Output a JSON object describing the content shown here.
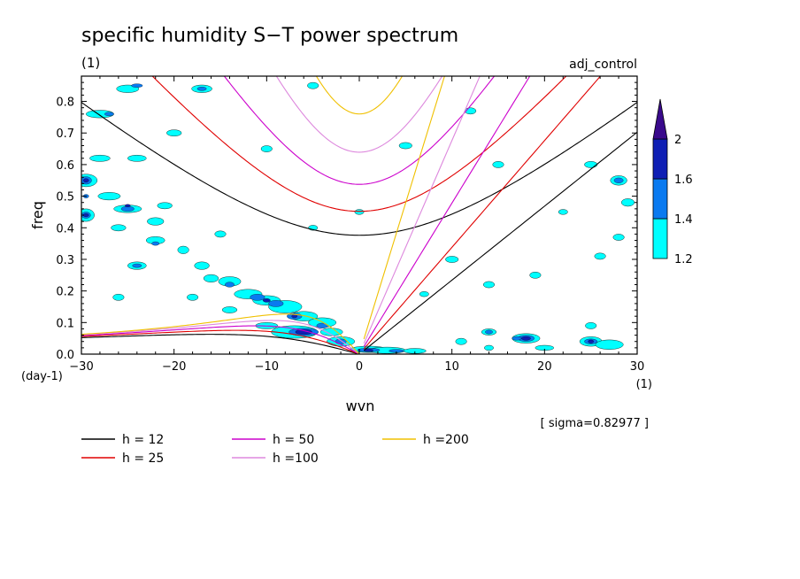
{
  "chart_data": {
    "type": "heatmap",
    "title": "specific humidity S−T power spectrum",
    "subtitle_left": "(1)",
    "subtitle_right": "adj_control",
    "xlabel": "wvn",
    "ylabel": "freq",
    "x_unit_label": "(1)",
    "y_unit_label": "(day-1)",
    "xlim": [
      -30,
      30
    ],
    "ylim": [
      0,
      0.88
    ],
    "x_ticks": [
      -30,
      -20,
      -10,
      0,
      10,
      20,
      30
    ],
    "x_tick_labels": [
      "−30",
      "−20",
      "−10",
      "0",
      "10",
      "20",
      "30"
    ],
    "y_ticks": [
      0,
      0.1,
      0.2,
      0.3,
      0.4,
      0.5,
      0.6,
      0.7,
      0.8
    ],
    "y_tick_labels": [
      "0.0",
      "0.1",
      "0.2",
      "0.3",
      "0.4",
      "0.5",
      "0.6",
      "0.7",
      "0.8"
    ],
    "note": "[ sigma=0.82977 ]",
    "colorbar": {
      "levels": [
        1.2,
        1.4,
        1.6,
        2
      ],
      "level_labels": [
        "1.2",
        "1.4",
        "1.6",
        "2"
      ],
      "colors": [
        "#00ffff",
        "#0a7af0",
        "#0f1fb4",
        "#3a0a8c"
      ]
    },
    "series": [
      {
        "name": "h = 12",
        "h": 12,
        "color": "#000000"
      },
      {
        "name": "h = 25",
        "h": 25,
        "color": "#e00000"
      },
      {
        "name": "h = 50",
        "h": 50,
        "color": "#cc00cc"
      },
      {
        "name": "h =100",
        "h": 100,
        "color": "#dd88dd"
      },
      {
        "name": "h =200",
        "h": 200,
        "color": "#f0c000"
      }
    ],
    "contours": [
      {
        "level": 1.2,
        "blobs": [
          [
            -29.5,
            0.55,
            1.2,
            0.02
          ],
          [
            -29.5,
            0.44,
            0.9,
            0.02
          ],
          [
            -27,
            0.5,
            1.2,
            0.012
          ],
          [
            -25,
            0.46,
            1.5,
            0.012
          ],
          [
            -22,
            0.42,
            0.9,
            0.012
          ],
          [
            -19,
            0.33,
            0.6,
            0.012
          ],
          [
            -28,
            0.76,
            1.5,
            0.012
          ],
          [
            -25,
            0.84,
            1.2,
            0.012
          ],
          [
            -17,
            0.84,
            1.1,
            0.012
          ],
          [
            -10,
            0.65,
            0.6,
            0.01
          ],
          [
            -5,
            0.85,
            0.6,
            0.01
          ],
          [
            5,
            0.66,
            0.7,
            0.01
          ],
          [
            12,
            0.77,
            0.6,
            0.01
          ],
          [
            15,
            0.6,
            0.6,
            0.01
          ],
          [
            25,
            0.6,
            0.7,
            0.01
          ],
          [
            28,
            0.55,
            0.9,
            0.015
          ],
          [
            29,
            0.48,
            0.7,
            0.012
          ],
          [
            -28,
            0.62,
            1.1,
            0.01
          ],
          [
            -24,
            0.62,
            1,
            0.01
          ],
          [
            -20,
            0.7,
            0.8,
            0.01
          ],
          [
            -17,
            0.28,
            0.8,
            0.012
          ],
          [
            -16,
            0.24,
            0.8,
            0.012
          ],
          [
            -14,
            0.23,
            1.2,
            0.015
          ],
          [
            -12,
            0.19,
            1.5,
            0.015
          ],
          [
            -10,
            0.17,
            1.5,
            0.015
          ],
          [
            -8,
            0.15,
            1.8,
            0.02
          ],
          [
            -6,
            0.12,
            1.5,
            0.015
          ],
          [
            -4,
            0.1,
            1.5,
            0.015
          ],
          [
            -3,
            0.07,
            1.2,
            0.012
          ],
          [
            -7,
            0.07,
            2.5,
            0.02
          ],
          [
            -10,
            0.09,
            1.2,
            0.01
          ],
          [
            -14,
            0.14,
            0.8,
            0.01
          ],
          [
            -2,
            0.04,
            1.5,
            0.015
          ],
          [
            1,
            0.015,
            2,
            0.01
          ],
          [
            3,
            0.012,
            2,
            0.01
          ],
          [
            6,
            0.01,
            1.2,
            0.008
          ],
          [
            11,
            0.04,
            0.6,
            0.01
          ],
          [
            14,
            0.02,
            0.5,
            0.008
          ],
          [
            14,
            0.07,
            0.8,
            0.01
          ],
          [
            18,
            0.05,
            1.5,
            0.015
          ],
          [
            25,
            0.04,
            1.2,
            0.015
          ],
          [
            25,
            0.09,
            0.6,
            0.01
          ],
          [
            27,
            0.03,
            1.5,
            0.015
          ],
          [
            20,
            0.02,
            1,
            0.008
          ],
          [
            10,
            0.3,
            0.7,
            0.01
          ],
          [
            14,
            0.22,
            0.6,
            0.01
          ],
          [
            19,
            0.25,
            0.6,
            0.01
          ],
          [
            26,
            0.31,
            0.6,
            0.01
          ],
          [
            28,
            0.37,
            0.6,
            0.01
          ],
          [
            -24,
            0.28,
            1,
            0.012
          ],
          [
            -22,
            0.36,
            1,
            0.012
          ],
          [
            -26,
            0.4,
            0.8,
            0.01
          ],
          [
            -21,
            0.47,
            0.8,
            0.01
          ],
          [
            -26,
            0.18,
            0.6,
            0.01
          ],
          [
            -18,
            0.18,
            0.6,
            0.01
          ],
          [
            -15,
            0.38,
            0.6,
            0.01
          ],
          [
            0,
            0.45,
            0.5,
            0.008
          ],
          [
            -5,
            0.4,
            0.5,
            0.008
          ],
          [
            7,
            0.19,
            0.5,
            0.008
          ],
          [
            22,
            0.45,
            0.5,
            0.008
          ]
        ]
      },
      {
        "level": 1.4,
        "blobs": [
          [
            -29.5,
            0.55,
            0.6,
            0.012
          ],
          [
            -29.5,
            0.44,
            0.5,
            0.01
          ],
          [
            -25,
            0.46,
            0.7,
            0.008
          ],
          [
            -27,
            0.76,
            0.5,
            0.006
          ],
          [
            -24,
            0.85,
            0.6,
            0.006
          ],
          [
            -17,
            0.84,
            0.5,
            0.006
          ],
          [
            -14,
            0.22,
            0.5,
            0.008
          ],
          [
            -11,
            0.18,
            0.8,
            0.01
          ],
          [
            -9,
            0.16,
            0.8,
            0.01
          ],
          [
            -7,
            0.12,
            0.8,
            0.01
          ],
          [
            -6,
            0.07,
            1.6,
            0.012
          ],
          [
            -4,
            0.09,
            0.6,
            0.008
          ],
          [
            -2,
            0.04,
            0.6,
            0.008
          ],
          [
            1,
            0.013,
            1.2,
            0.006
          ],
          [
            4,
            0.01,
            0.8,
            0.005
          ],
          [
            18,
            0.05,
            0.9,
            0.01
          ],
          [
            17,
            0.05,
            0.5,
            0.006
          ],
          [
            25,
            0.04,
            0.7,
            0.008
          ],
          [
            28,
            0.55,
            0.5,
            0.008
          ],
          [
            -24,
            0.28,
            0.5,
            0.006
          ],
          [
            -22,
            0.35,
            0.4,
            0.006
          ],
          [
            14,
            0.07,
            0.4,
            0.006
          ],
          [
            -29.5,
            0.5,
            0.3,
            0.006
          ]
        ]
      },
      {
        "level": 1.6,
        "blobs": [
          [
            -29.5,
            0.55,
            0.3,
            0.006
          ],
          [
            -29.5,
            0.44,
            0.3,
            0.005
          ],
          [
            -10,
            0.17,
            0.4,
            0.006
          ],
          [
            -6,
            0.07,
            0.9,
            0.008
          ],
          [
            -7,
            0.12,
            0.3,
            0.005
          ],
          [
            18,
            0.05,
            0.5,
            0.006
          ],
          [
            25,
            0.04,
            0.3,
            0.005
          ],
          [
            1,
            0.012,
            0.5,
            0.004
          ],
          [
            -25,
            0.47,
            0.3,
            0.004
          ]
        ]
      }
    ]
  },
  "legend": {
    "items": [
      {
        "label": "h = 12",
        "color": "#000000"
      },
      {
        "label": "h = 25",
        "color": "#e00000"
      },
      {
        "label": "h = 50",
        "color": "#cc00cc"
      },
      {
        "label": "h =100",
        "color": "#dd88dd"
      },
      {
        "label": "h =200",
        "color": "#f0c000"
      }
    ]
  }
}
